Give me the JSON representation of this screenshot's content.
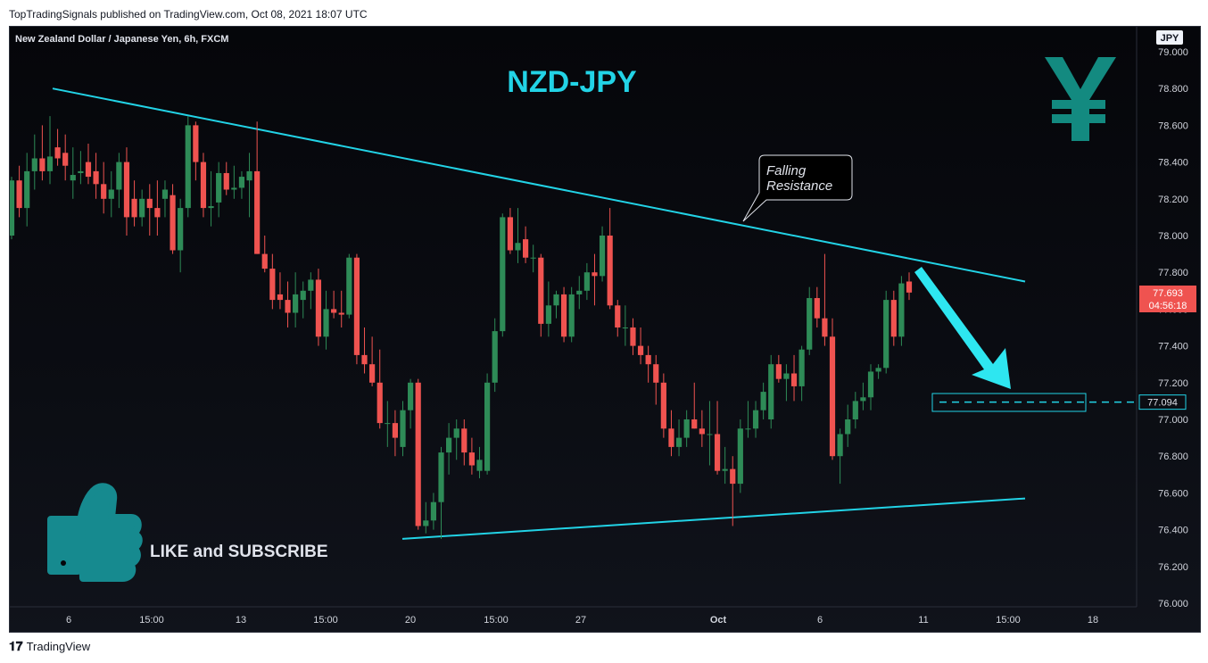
{
  "header": {
    "published_line": "TopTradingSignals published on TradingView.com, Oct 08, 2021 18:07 UTC"
  },
  "footer": {
    "brand": "TradingView",
    "logo_icon": "tradingview-logo-icon"
  },
  "colors": {
    "bull": "#26a69a",
    "bull_fill": "#2e8b57",
    "bear": "#ef5350",
    "trendline": "#22d3e6",
    "title": "#22d3e6",
    "yen": "#138a80"
  },
  "chart_data": {
    "type": "candlestick",
    "title": "NZD-JPY",
    "instrument": "New Zealand Dollar / Japanese Yen, 6h, FXCM",
    "currency_badge": "JPY",
    "y_axis": {
      "ylim": [
        76.0,
        79.0
      ],
      "ticks": [
        "79.000",
        "78.800",
        "78.600",
        "78.400",
        "78.200",
        "78.000",
        "77.800",
        "77.600",
        "77.400",
        "77.200",
        "77.000",
        "76.800",
        "76.600",
        "76.400",
        "76.200",
        "76.000"
      ]
    },
    "x_axis": {
      "ticks": [
        "6",
        "15:00",
        "13",
        "15:00",
        "20",
        "15:00",
        "27",
        "Oct",
        "6",
        "11",
        "15:00",
        "18"
      ]
    },
    "last_price": {
      "value": "77.693",
      "countdown": "04:56:18"
    },
    "target_level": {
      "value": "77.094",
      "price": 77.094
    },
    "annotation": {
      "text_line1": "Falling",
      "text_line2": "Resistance"
    },
    "promo": {
      "text": "LIKE and SUBSCRIBE",
      "icon": "thumbs-up-icon"
    },
    "currency_icon": "yen-sign-icon",
    "trendlines": [
      {
        "name": "falling resistance",
        "points": [
          [
            "Sep 3",
            78.8
          ],
          [
            "Oct 12",
            77.75
          ]
        ]
      },
      {
        "name": "support",
        "points": [
          [
            "Sep 20",
            76.35
          ],
          [
            "Oct 12",
            76.57
          ]
        ]
      }
    ],
    "candles": [
      {
        "o": 78.0,
        "h": 78.32,
        "l": 77.98,
        "c": 78.3
      },
      {
        "o": 78.3,
        "h": 78.38,
        "l": 78.1,
        "c": 78.15
      },
      {
        "o": 78.15,
        "h": 78.45,
        "l": 78.05,
        "c": 78.35
      },
      {
        "o": 78.35,
        "h": 78.55,
        "l": 78.25,
        "c": 78.42
      },
      {
        "o": 78.42,
        "h": 78.6,
        "l": 78.3,
        "c": 78.35
      },
      {
        "o": 78.35,
        "h": 78.65,
        "l": 78.28,
        "c": 78.43
      },
      {
        "o": 78.48,
        "h": 78.58,
        "l": 78.38,
        "c": 78.42
      },
      {
        "o": 78.45,
        "h": 78.55,
        "l": 78.3,
        "c": 78.38
      },
      {
        "o": 78.3,
        "h": 78.48,
        "l": 78.2,
        "c": 78.33
      },
      {
        "o": 78.34,
        "h": 78.46,
        "l": 78.28,
        "c": 78.35
      },
      {
        "o": 78.4,
        "h": 78.5,
        "l": 78.28,
        "c": 78.32
      },
      {
        "o": 78.35,
        "h": 78.45,
        "l": 78.2,
        "c": 78.28
      },
      {
        "o": 78.28,
        "h": 78.4,
        "l": 78.12,
        "c": 78.2
      },
      {
        "o": 78.2,
        "h": 78.35,
        "l": 78.1,
        "c": 78.25
      },
      {
        "o": 78.25,
        "h": 78.45,
        "l": 78.15,
        "c": 78.4
      },
      {
        "o": 78.4,
        "h": 78.48,
        "l": 78.0,
        "c": 78.1
      },
      {
        "o": 78.2,
        "h": 78.3,
        "l": 78.05,
        "c": 78.1
      },
      {
        "o": 78.1,
        "h": 78.25,
        "l": 78.05,
        "c": 78.2
      },
      {
        "o": 78.2,
        "h": 78.28,
        "l": 78.0,
        "c": 78.15
      },
      {
        "o": 78.15,
        "h": 78.3,
        "l": 78.0,
        "c": 78.1
      },
      {
        "o": 78.2,
        "h": 78.3,
        "l": 78.1,
        "c": 78.25
      },
      {
        "o": 78.22,
        "h": 78.28,
        "l": 77.9,
        "c": 77.92
      },
      {
        "o": 77.92,
        "h": 78.2,
        "l": 77.8,
        "c": 78.15
      },
      {
        "o": 78.15,
        "h": 78.65,
        "l": 78.1,
        "c": 78.6
      },
      {
        "o": 78.6,
        "h": 78.62,
        "l": 78.3,
        "c": 78.4
      },
      {
        "o": 78.4,
        "h": 78.45,
        "l": 78.1,
        "c": 78.15
      },
      {
        "o": 78.15,
        "h": 78.35,
        "l": 78.05,
        "c": 78.16
      },
      {
        "o": 78.18,
        "h": 78.4,
        "l": 78.1,
        "c": 78.34
      },
      {
        "o": 78.34,
        "h": 78.4,
        "l": 78.22,
        "c": 78.25
      },
      {
        "o": 78.25,
        "h": 78.38,
        "l": 78.2,
        "c": 78.26
      },
      {
        "o": 78.26,
        "h": 78.35,
        "l": 78.2,
        "c": 78.32
      },
      {
        "o": 78.3,
        "h": 78.45,
        "l": 78.1,
        "c": 78.35
      },
      {
        "o": 78.35,
        "h": 78.62,
        "l": 77.9,
        "c": 77.9
      },
      {
        "o": 77.9,
        "h": 78.0,
        "l": 77.8,
        "c": 77.82
      },
      {
        "o": 77.82,
        "h": 77.9,
        "l": 77.6,
        "c": 77.65
      },
      {
        "o": 77.68,
        "h": 77.8,
        "l": 77.6,
        "c": 77.65
      },
      {
        "o": 77.65,
        "h": 77.75,
        "l": 77.5,
        "c": 77.58
      },
      {
        "o": 77.58,
        "h": 77.8,
        "l": 77.5,
        "c": 77.68
      },
      {
        "o": 77.65,
        "h": 77.75,
        "l": 77.55,
        "c": 77.7
      },
      {
        "o": 77.7,
        "h": 77.8,
        "l": 77.6,
        "c": 77.76
      },
      {
        "o": 77.76,
        "h": 77.82,
        "l": 77.4,
        "c": 77.45
      },
      {
        "o": 77.45,
        "h": 77.7,
        "l": 77.38,
        "c": 77.6
      },
      {
        "o": 77.6,
        "h": 77.7,
        "l": 77.55,
        "c": 77.58
      },
      {
        "o": 77.58,
        "h": 77.7,
        "l": 77.5,
        "c": 77.57
      },
      {
        "o": 77.57,
        "h": 77.9,
        "l": 77.55,
        "c": 77.88
      },
      {
        "o": 77.88,
        "h": 77.9,
        "l": 77.3,
        "c": 77.35
      },
      {
        "o": 77.35,
        "h": 77.5,
        "l": 77.25,
        "c": 77.3
      },
      {
        "o": 77.3,
        "h": 77.45,
        "l": 77.18,
        "c": 77.2
      },
      {
        "o": 77.2,
        "h": 77.38,
        "l": 76.95,
        "c": 76.98
      },
      {
        "o": 76.98,
        "h": 77.1,
        "l": 76.85,
        "c": 76.98
      },
      {
        "o": 76.98,
        "h": 77.05,
        "l": 76.8,
        "c": 76.9
      },
      {
        "o": 76.85,
        "h": 77.1,
        "l": 76.8,
        "c": 77.05
      },
      {
        "o": 77.05,
        "h": 77.22,
        "l": 76.95,
        "c": 77.2
      },
      {
        "o": 77.2,
        "h": 77.22,
        "l": 76.4,
        "c": 76.42
      },
      {
        "o": 76.42,
        "h": 76.55,
        "l": 76.38,
        "c": 76.45
      },
      {
        "o": 76.45,
        "h": 76.6,
        "l": 76.4,
        "c": 76.55
      },
      {
        "o": 76.55,
        "h": 76.85,
        "l": 76.35,
        "c": 76.82
      },
      {
        "o": 76.82,
        "h": 76.98,
        "l": 76.7,
        "c": 76.9
      },
      {
        "o": 76.9,
        "h": 77.0,
        "l": 76.78,
        "c": 76.95
      },
      {
        "o": 76.95,
        "h": 77.0,
        "l": 76.75,
        "c": 76.82
      },
      {
        "o": 76.82,
        "h": 76.9,
        "l": 76.7,
        "c": 76.75
      },
      {
        "o": 76.72,
        "h": 76.85,
        "l": 76.68,
        "c": 76.78
      },
      {
        "o": 76.72,
        "h": 77.25,
        "l": 76.7,
        "c": 77.2
      },
      {
        "o": 77.2,
        "h": 77.55,
        "l": 77.15,
        "c": 77.48
      },
      {
        "o": 77.48,
        "h": 78.12,
        "l": 77.45,
        "c": 78.1
      },
      {
        "o": 78.1,
        "h": 78.15,
        "l": 77.9,
        "c": 77.92
      },
      {
        "o": 77.92,
        "h": 78.15,
        "l": 77.85,
        "c": 77.96
      },
      {
        "o": 77.98,
        "h": 78.05,
        "l": 77.85,
        "c": 77.88
      },
      {
        "o": 77.88,
        "h": 77.95,
        "l": 77.8,
        "c": 77.88
      },
      {
        "o": 77.88,
        "h": 77.9,
        "l": 77.45,
        "c": 77.52
      },
      {
        "o": 77.52,
        "h": 77.75,
        "l": 77.45,
        "c": 77.62
      },
      {
        "o": 77.62,
        "h": 77.7,
        "l": 77.55,
        "c": 77.68
      },
      {
        "o": 77.68,
        "h": 77.72,
        "l": 77.42,
        "c": 77.45
      },
      {
        "o": 77.45,
        "h": 77.72,
        "l": 77.42,
        "c": 77.68
      },
      {
        "o": 77.68,
        "h": 77.78,
        "l": 77.6,
        "c": 77.7
      },
      {
        "o": 77.7,
        "h": 77.85,
        "l": 77.65,
        "c": 77.8
      },
      {
        "o": 77.8,
        "h": 77.9,
        "l": 77.62,
        "c": 77.78
      },
      {
        "o": 77.78,
        "h": 78.05,
        "l": 77.75,
        "c": 78.0
      },
      {
        "o": 78.0,
        "h": 78.15,
        "l": 77.6,
        "c": 77.62
      },
      {
        "o": 77.62,
        "h": 77.65,
        "l": 77.45,
        "c": 77.5
      },
      {
        "o": 77.5,
        "h": 77.62,
        "l": 77.4,
        "c": 77.5
      },
      {
        "o": 77.5,
        "h": 77.55,
        "l": 77.35,
        "c": 77.4
      },
      {
        "o": 77.4,
        "h": 77.5,
        "l": 77.3,
        "c": 77.35
      },
      {
        "o": 77.35,
        "h": 77.4,
        "l": 77.2,
        "c": 77.3
      },
      {
        "o": 77.3,
        "h": 77.35,
        "l": 77.08,
        "c": 77.2
      },
      {
        "o": 77.2,
        "h": 77.25,
        "l": 76.9,
        "c": 76.95
      },
      {
        "o": 76.95,
        "h": 77.05,
        "l": 76.8,
        "c": 76.85
      },
      {
        "o": 76.85,
        "h": 77.0,
        "l": 76.8,
        "c": 76.9
      },
      {
        "o": 76.9,
        "h": 77.05,
        "l": 76.85,
        "c": 77.0
      },
      {
        "o": 77.0,
        "h": 77.2,
        "l": 76.95,
        "c": 76.95
      },
      {
        "o": 76.95,
        "h": 77.05,
        "l": 76.85,
        "c": 76.92
      },
      {
        "o": 76.92,
        "h": 77.1,
        "l": 76.75,
        "c": 76.92
      },
      {
        "o": 76.92,
        "h": 77.1,
        "l": 76.7,
        "c": 76.72
      },
      {
        "o": 76.72,
        "h": 76.85,
        "l": 76.65,
        "c": 76.73
      },
      {
        "o": 76.73,
        "h": 76.8,
        "l": 76.42,
        "c": 76.65
      },
      {
        "o": 76.65,
        "h": 77.0,
        "l": 76.6,
        "c": 76.95
      },
      {
        "o": 76.95,
        "h": 77.1,
        "l": 76.9,
        "c": 76.95
      },
      {
        "o": 76.95,
        "h": 77.1,
        "l": 76.9,
        "c": 77.05
      },
      {
        "o": 77.05,
        "h": 77.2,
        "l": 77.0,
        "c": 77.15
      },
      {
        "o": 77.0,
        "h": 77.35,
        "l": 76.95,
        "c": 77.3
      },
      {
        "o": 77.3,
        "h": 77.35,
        "l": 77.2,
        "c": 77.22
      },
      {
        "o": 77.22,
        "h": 77.3,
        "l": 77.1,
        "c": 77.25
      },
      {
        "o": 77.25,
        "h": 77.35,
        "l": 77.1,
        "c": 77.18
      },
      {
        "o": 77.18,
        "h": 77.4,
        "l": 77.1,
        "c": 77.38
      },
      {
        "o": 77.38,
        "h": 77.72,
        "l": 77.35,
        "c": 77.66
      },
      {
        "o": 77.66,
        "h": 77.72,
        "l": 77.5,
        "c": 77.55
      },
      {
        "o": 77.55,
        "h": 77.9,
        "l": 77.4,
        "c": 77.45
      },
      {
        "o": 77.45,
        "h": 77.55,
        "l": 76.78,
        "c": 76.8
      },
      {
        "o": 76.8,
        "h": 76.95,
        "l": 76.65,
        "c": 76.92
      },
      {
        "o": 76.92,
        "h": 77.08,
        "l": 76.85,
        "c": 77.0
      },
      {
        "o": 77.0,
        "h": 77.15,
        "l": 76.95,
        "c": 77.1
      },
      {
        "o": 77.1,
        "h": 77.2,
        "l": 77.05,
        "c": 77.12
      },
      {
        "o": 77.12,
        "h": 77.3,
        "l": 77.05,
        "c": 77.26
      },
      {
        "o": 77.26,
        "h": 77.3,
        "l": 77.22,
        "c": 77.28
      },
      {
        "o": 77.28,
        "h": 77.7,
        "l": 77.25,
        "c": 77.65
      },
      {
        "o": 77.65,
        "h": 77.7,
        "l": 77.4,
        "c": 77.45
      },
      {
        "o": 77.45,
        "h": 77.78,
        "l": 77.4,
        "c": 77.74
      },
      {
        "o": 77.75,
        "h": 77.8,
        "l": 77.65,
        "c": 77.69
      }
    ]
  }
}
